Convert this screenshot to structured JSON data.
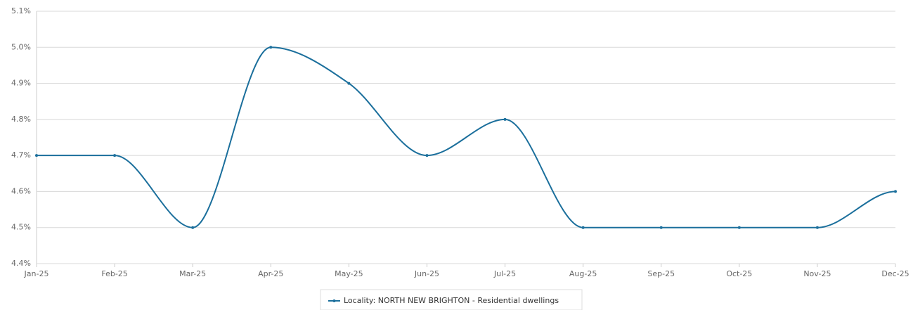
{
  "chart_data": {
    "type": "line",
    "categories": [
      "Jan-25",
      "Feb-25",
      "Mar-25",
      "Apr-25",
      "May-25",
      "Jun-25",
      "Jul-25",
      "Aug-25",
      "Sep-25",
      "Oct-25",
      "Nov-25",
      "Dec-25"
    ],
    "series": [
      {
        "name": "Locality: NORTH NEW BRIGHTON - Residential dwellings",
        "color": "#1b6f9c",
        "values": [
          4.7,
          4.7,
          4.5,
          5.0,
          4.9,
          4.7,
          4.8,
          4.5,
          4.5,
          4.5,
          4.5,
          4.6
        ]
      }
    ],
    "ylim": [
      4.4,
      5.1
    ],
    "yticks": [
      {
        "value": 4.4,
        "label": "4.4%"
      },
      {
        "value": 4.5,
        "label": "4.5%"
      },
      {
        "value": 4.6,
        "label": "4.6%"
      },
      {
        "value": 4.7,
        "label": "4.7%"
      },
      {
        "value": 4.8,
        "label": "4.8%"
      },
      {
        "value": 4.9,
        "label": "4.9%"
      },
      {
        "value": 5.0,
        "label": "5.0%"
      },
      {
        "value": 5.1,
        "label": "5.1%"
      }
    ],
    "grid": true,
    "legend": "bottom"
  }
}
